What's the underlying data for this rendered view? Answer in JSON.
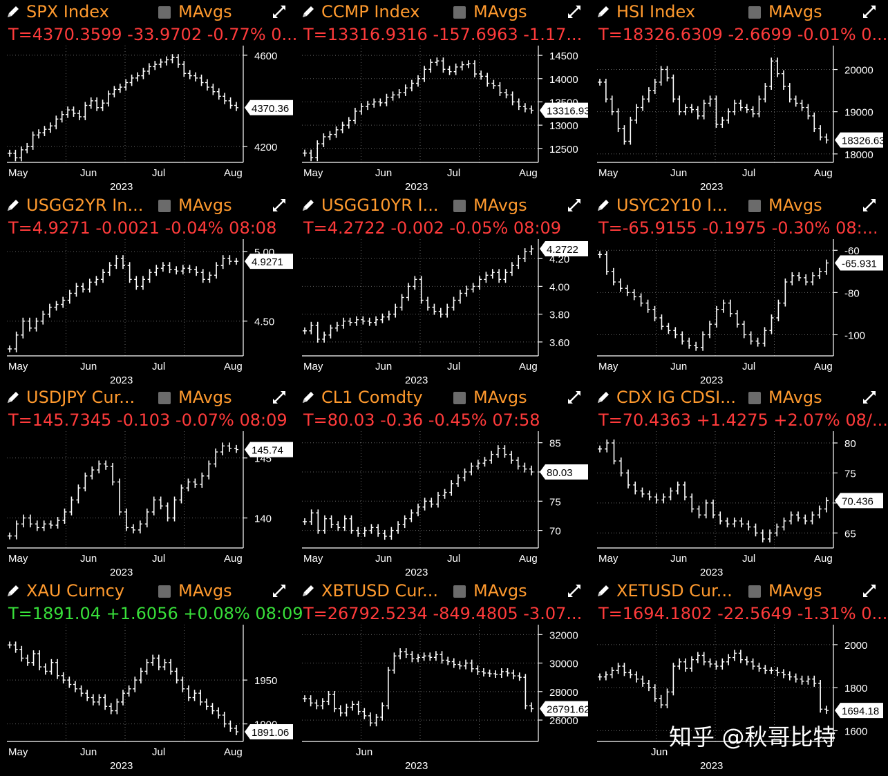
{
  "watermark": "知乎 @秋哥比特",
  "panel_label": "MAvgs",
  "panels": [
    {
      "title": "SPX Index",
      "quote": "T=4370.3599 -33.9702 -0.77% 0...",
      "quote_color": "neg",
      "yticks": [
        "4600",
        "4200"
      ],
      "last": "4370.36",
      "months": [
        "May",
        "Jun",
        "Jul",
        "Aug"
      ],
      "year": "2023",
      "chart_data": {
        "type": "line",
        "ylim": [
          4130,
          4630
        ],
        "y": [
          4170,
          4150,
          4185,
          4200,
          4250,
          4260,
          4275,
          4290,
          4320,
          4340,
          4360,
          4345,
          4330,
          4380,
          4400,
          4370,
          4390,
          4430,
          4450,
          4460,
          4480,
          4500,
          4510,
          4530,
          4550,
          4560,
          4570,
          4580,
          4590,
          4560,
          4520,
          4510,
          4500,
          4480,
          4460,
          4440,
          4420,
          4400,
          4380,
          4370
        ]
      }
    },
    {
      "title": "CCMP Index",
      "quote": "T=13316.9316 -157.6963 -1.17...",
      "quote_color": "neg",
      "yticks": [
        "14500",
        "14000",
        "13500",
        "13000",
        "12500"
      ],
      "last": "13316.93",
      "months": [
        "May",
        "Jun",
        "Jul",
        "Aug"
      ],
      "year": "2023",
      "chart_data": {
        "type": "line",
        "ylim": [
          12200,
          14650
        ],
        "y": [
          12400,
          12300,
          12600,
          12750,
          12800,
          12900,
          13000,
          13100,
          13300,
          13400,
          13450,
          13500,
          13480,
          13600,
          13650,
          13700,
          13800,
          13900,
          14000,
          14200,
          14350,
          14380,
          14200,
          14150,
          14250,
          14300,
          14320,
          14100,
          14050,
          13900,
          13850,
          13700,
          13650,
          13500,
          13400,
          13350,
          13320
        ]
      }
    },
    {
      "title": "HSI Index",
      "quote": "T=18326.6309 -2.6699 -0.01% 0...",
      "quote_color": "neg",
      "yticks": [
        "20000",
        "19000",
        "18000"
      ],
      "last": "18326.63",
      "months": [
        "May",
        "Jun",
        "Jul",
        "Aug"
      ],
      "year": "2023",
      "chart_data": {
        "type": "line",
        "ylim": [
          17800,
          20500
        ],
        "y": [
          19700,
          19300,
          19000,
          18600,
          18300,
          18800,
          19100,
          19300,
          19500,
          19700,
          20000,
          19800,
          19300,
          19000,
          19100,
          19050,
          18900,
          19200,
          19300,
          18700,
          18800,
          19000,
          19200,
          19100,
          19050,
          18950,
          19300,
          19600,
          20200,
          19900,
          19600,
          19300,
          19200,
          19100,
          18900,
          18600,
          18400,
          18330
        ]
      }
    },
    {
      "title": "USGG2YR In...",
      "quote": "T=4.9271 -0.0021 -0.04% 08:08",
      "quote_color": "neg",
      "yticks": [
        "5.00",
        "4.50"
      ],
      "last": "4.9271",
      "months": [
        "May",
        "Jun",
        "Jul",
        "Aug"
      ],
      "year": "2023",
      "chart_data": {
        "type": "line",
        "ylim": [
          4.25,
          5.07
        ],
        "y": [
          4.3,
          4.4,
          4.5,
          4.45,
          4.5,
          4.55,
          4.6,
          4.62,
          4.65,
          4.7,
          4.75,
          4.73,
          4.78,
          4.8,
          4.85,
          4.9,
          4.95,
          4.9,
          4.8,
          4.75,
          4.8,
          4.85,
          4.88,
          4.9,
          4.87,
          4.86,
          4.88,
          4.87,
          4.85,
          4.8,
          4.83,
          4.9,
          4.95,
          4.93,
          4.93
        ]
      }
    },
    {
      "title": "USGG10YR I...",
      "quote": "T=4.2722 -0.002 -0.05% 08:09",
      "quote_color": "neg",
      "yticks": [
        "4.20",
        "4.00",
        "3.80",
        "3.60"
      ],
      "last": "4.2722",
      "months": [
        "May",
        "Jun",
        "Jul",
        "Aug"
      ],
      "year": "2023",
      "chart_data": {
        "type": "line",
        "ylim": [
          3.5,
          4.32
        ],
        "y": [
          3.68,
          3.72,
          3.62,
          3.65,
          3.7,
          3.72,
          3.75,
          3.74,
          3.76,
          3.75,
          3.74,
          3.76,
          3.78,
          3.8,
          3.85,
          3.92,
          4.0,
          4.05,
          3.9,
          3.85,
          3.82,
          3.8,
          3.85,
          3.9,
          3.95,
          3.98,
          4.0,
          4.05,
          4.08,
          4.1,
          4.05,
          4.1,
          4.15,
          4.2,
          4.25,
          4.27
        ]
      }
    },
    {
      "title": "USYC2Y10 I...",
      "quote": "T=-65.9155 -0.1975 -0.30% 08:...",
      "quote_color": "neg",
      "yticks": [
        "-60",
        "-80",
        "-100"
      ],
      "last": "-65.931",
      "months": [
        "May",
        "Jun",
        "Jul",
        "Aug"
      ],
      "year": "2023",
      "chart_data": {
        "type": "line",
        "ylim": [
          -110,
          -56
        ],
        "y": [
          -62,
          -70,
          -75,
          -78,
          -80,
          -82,
          -85,
          -88,
          -92,
          -96,
          -98,
          -100,
          -103,
          -105,
          -106,
          -100,
          -95,
          -88,
          -85,
          -90,
          -95,
          -100,
          -103,
          -104,
          -98,
          -92,
          -85,
          -75,
          -72,
          -73,
          -75,
          -72,
          -70,
          -66
        ]
      }
    },
    {
      "title": "USDJPY Cur...",
      "quote": "T=145.7345 -0.103 -0.07% 08:09",
      "quote_color": "neg",
      "yticks": [
        "145",
        "140"
      ],
      "last": "145.74",
      "months": [
        "May",
        "Jun",
        "Jul",
        "Aug"
      ],
      "year": "2023",
      "chart_data": {
        "type": "line",
        "ylim": [
          137.5,
          147
        ],
        "y": [
          138.5,
          139.5,
          140,
          139.5,
          139.2,
          139.5,
          139.4,
          139.8,
          140.5,
          141.5,
          142.5,
          143.5,
          144,
          144.5,
          144.3,
          143,
          140.5,
          139.2,
          139,
          139.5,
          140.5,
          141.5,
          141,
          140,
          141.5,
          142.5,
          143,
          142.8,
          143.5,
          144.5,
          145.5,
          146,
          145.8,
          145.7
        ]
      }
    },
    {
      "title": "CL1 Comdty",
      "quote": "T=80.03 -0.36 -0.45% 07:58",
      "quote_color": "neg",
      "yticks": [
        "85",
        "80",
        "75",
        "70"
      ],
      "last": "80.03",
      "months": [
        "May",
        "Jun",
        "Jul",
        "Aug"
      ],
      "year": "2023",
      "chart_data": {
        "type": "line",
        "ylim": [
          67,
          86.5
        ],
        "y": [
          71.5,
          73,
          70,
          72,
          71,
          70.5,
          72,
          70,
          69.5,
          70,
          70.5,
          69.5,
          69,
          70,
          71,
          72,
          73,
          74,
          75,
          74.5,
          76,
          76.5,
          78,
          79,
          80,
          81,
          81.5,
          82,
          83,
          84,
          83,
          82,
          81,
          80.5,
          80
        ]
      }
    },
    {
      "title": "CDX IG CDSI...",
      "quote": "T=70.4363 +1.4275 +2.07% 08/...",
      "quote_color": "neg",
      "yticks": [
        "80",
        "75",
        "70",
        "65"
      ],
      "last": "70.436",
      "months": [
        "May",
        "Jun",
        "Jul",
        "Aug"
      ],
      "year": "2023",
      "chart_data": {
        "type": "line",
        "ylim": [
          62.5,
          81.5
        ],
        "y": [
          79,
          80,
          77,
          75,
          73,
          72,
          71.5,
          71,
          70.5,
          71,
          72,
          73,
          71,
          69,
          68,
          70,
          68,
          67,
          66.5,
          67,
          66.5,
          66,
          65,
          64,
          65,
          66,
          67,
          68,
          67.5,
          67,
          68,
          69,
          70.4
        ]
      }
    },
    {
      "title": "XAU Curncy",
      "quote": "T=1891.04 +1.6056 +0.08% 08:09",
      "quote_color": "pos",
      "yticks": [
        "1950",
        "1900"
      ],
      "last": "1891.06",
      "months": [
        "May",
        "Jun",
        "Jul",
        "Aug"
      ],
      "year": "2023",
      "chart_data": {
        "type": "line",
        "ylim": [
          1880,
          2010
        ],
        "y": [
          1990,
          1985,
          1975,
          1970,
          1980,
          1965,
          1960,
          1970,
          1955,
          1950,
          1945,
          1940,
          1935,
          1930,
          1925,
          1930,
          1920,
          1915,
          1925,
          1935,
          1940,
          1950,
          1960,
          1970,
          1975,
          1965,
          1970,
          1960,
          1950,
          1940,
          1930,
          1935,
          1925,
          1920,
          1915,
          1910,
          1900,
          1895,
          1891
        ]
      }
    },
    {
      "title": "XBTUSD Cur...",
      "quote": "T=26792.5234 -849.4805 -3.07...",
      "quote_color": "neg",
      "yticks": [
        "32000",
        "30000",
        "28000",
        "26000"
      ],
      "last": "26791.62",
      "months": [
        "Jun"
      ],
      "year": "2023",
      "chart_data": {
        "type": "line",
        "ylim": [
          24500,
          32500
        ],
        "y": [
          27500,
          27200,
          27000,
          27300,
          27800,
          26800,
          26500,
          26900,
          27100,
          26600,
          26300,
          25800,
          26200,
          27000,
          29500,
          30500,
          30800,
          30600,
          30300,
          30400,
          30500,
          30400,
          30600,
          30200,
          30100,
          29900,
          29800,
          30000,
          29600,
          29400,
          29300,
          29250,
          29200,
          29400,
          29300,
          29100,
          29000,
          27000,
          26800
        ]
      }
    },
    {
      "title": "XETUSD Cur...",
      "quote": "T=1694.1802 -22.5649 -1.31% 0...",
      "quote_color": "neg",
      "yticks": [
        "2000",
        "1800",
        "1600"
      ],
      "last": "1694.18",
      "months": [
        "Jun"
      ],
      "year": "2023",
      "chart_data": {
        "type": "line",
        "ylim": [
          1550,
          2080
        ],
        "y": [
          1850,
          1860,
          1880,
          1900,
          1870,
          1860,
          1840,
          1820,
          1800,
          1750,
          1720,
          1780,
          1900,
          1920,
          1890,
          1930,
          1950,
          1920,
          1910,
          1900,
          1920,
          1940,
          1960,
          1930,
          1920,
          1900,
          1890,
          1880,
          1880,
          1870,
          1860,
          1850,
          1840,
          1830,
          1840,
          1820,
          1700,
          1694
        ]
      }
    }
  ]
}
